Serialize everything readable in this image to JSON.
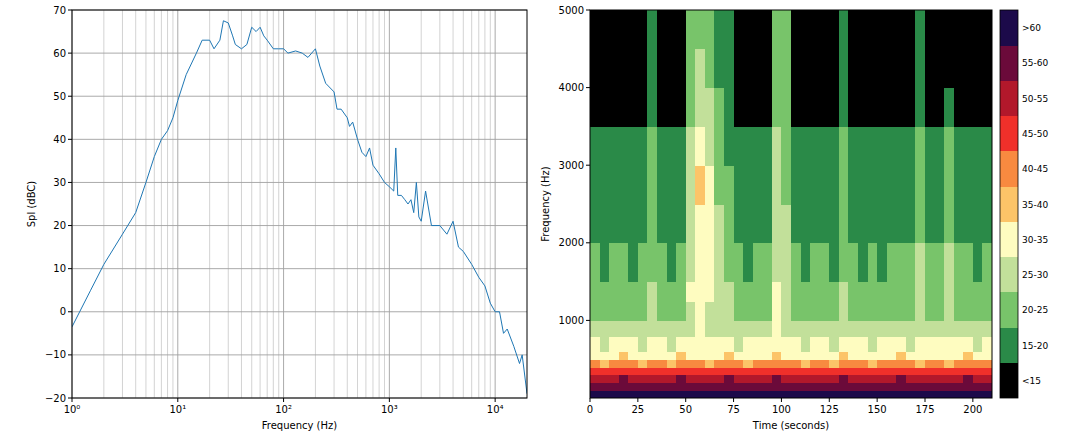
{
  "chart_data": [
    {
      "type": "line",
      "x_label": "Frequency (Hz)",
      "y_label": "Spl (dBC)",
      "log": "x",
      "grid": true,
      "xlim": [
        1,
        20000
      ],
      "ylim": [
        -20,
        70
      ],
      "xticks": [
        {
          "value": 1,
          "label": "10⁰"
        },
        {
          "value": 10,
          "label": "10¹"
        },
        {
          "value": 100,
          "label": "10²"
        },
        {
          "value": 1000,
          "label": "10³"
        },
        {
          "value": 10000,
          "label": "10⁴"
        }
      ],
      "yticks": [
        {
          "value": -20,
          "label": "−20"
        },
        {
          "value": -10,
          "label": "−10"
        },
        0,
        10,
        20,
        30,
        40,
        50,
        60,
        70
      ],
      "x": [
        1,
        1.5,
        2,
        3,
        4,
        5,
        6,
        7,
        8,
        9,
        10,
        12,
        15,
        17,
        20,
        22,
        25,
        27,
        30,
        33,
        35,
        40,
        45,
        50,
        55,
        60,
        65,
        70,
        80,
        90,
        100,
        110,
        130,
        150,
        170,
        200,
        220,
        250,
        300,
        320,
        350,
        400,
        420,
        450,
        500,
        550,
        600,
        650,
        700,
        800,
        900,
        1000,
        1100,
        1150,
        1200,
        1300,
        1400,
        1500,
        1600,
        1700,
        1800,
        1900,
        2000,
        2200,
        2500,
        3000,
        3500,
        4000,
        4500,
        5000,
        6000,
        7000,
        8000,
        9000,
        10000,
        11000,
        12000,
        13000,
        15000,
        17000,
        18000,
        20000
      ],
      "series": [
        {
          "color": "#1f77b4",
          "values": [
            -3.5,
            5,
            11,
            18,
            23,
            30,
            36,
            40,
            42,
            45,
            49,
            55,
            60,
            63,
            63,
            61,
            63,
            67.5,
            67,
            64,
            62,
            61,
            62,
            66,
            65,
            66,
            64,
            63,
            61,
            61,
            61,
            60,
            60.5,
            60,
            59,
            61,
            57,
            53,
            51,
            47,
            47,
            45,
            43,
            44,
            40,
            37,
            36,
            38,
            34,
            32,
            30,
            29,
            28,
            38,
            27,
            27,
            26,
            25,
            26,
            23,
            30,
            22,
            21,
            28,
            20,
            20,
            18,
            21,
            15,
            14,
            11,
            8,
            6,
            2,
            0,
            0,
            -5,
            -4,
            -8,
            -12,
            -10,
            -19
          ]
        }
      ]
    },
    {
      "type": "heatmap",
      "x_label": "Time (seconds)",
      "y_label": "Frequency (Hz)",
      "xlim": [
        0,
        210
      ],
      "ylim": [
        0,
        5000
      ],
      "xticks": [
        0,
        25,
        50,
        75,
        100,
        125,
        150,
        175,
        200
      ],
      "yticks": [
        1000,
        2000,
        3000,
        4000,
        5000
      ],
      "x_bins": [
        0,
        5,
        10,
        15,
        20,
        25,
        30,
        35,
        40,
        45,
        50,
        55,
        60,
        65,
        70,
        75,
        80,
        85,
        90,
        95,
        100,
        105,
        110,
        115,
        120,
        125,
        130,
        135,
        140,
        145,
        150,
        155,
        160,
        165,
        170,
        175,
        180,
        185,
        190,
        195,
        200,
        205,
        210
      ],
      "y_bins": [
        0,
        100,
        200,
        300,
        400,
        500,
        600,
        800,
        1000,
        1250,
        1500,
        2000,
        2500,
        3000,
        3500,
        4000,
        4500,
        5000
      ],
      "values": [
        [
          62,
          61,
          62,
          63,
          62,
          62,
          61,
          62,
          62,
          63,
          62,
          61,
          62,
          62,
          63,
          62,
          61,
          62,
          62,
          62,
          63,
          62,
          61,
          62,
          62,
          62,
          63,
          62,
          61,
          62,
          62,
          62,
          63,
          62,
          62,
          61,
          62,
          62,
          63,
          62,
          61,
          62
        ],
        [
          58,
          57,
          58,
          59,
          58,
          58,
          57,
          58,
          58,
          59,
          58,
          57,
          58,
          58,
          59,
          58,
          57,
          58,
          58,
          59,
          58,
          58,
          57,
          58,
          58,
          58,
          59,
          58,
          57,
          58,
          58,
          58,
          59,
          58,
          58,
          57,
          58,
          58,
          59,
          58,
          57,
          58
        ],
        [
          54,
          53,
          54,
          55,
          54,
          53,
          54,
          54,
          53,
          55,
          54,
          54,
          53,
          54,
          55,
          54,
          53,
          54,
          54,
          55,
          54,
          54,
          53,
          54,
          54,
          53,
          55,
          54,
          54,
          53,
          54,
          54,
          55,
          54,
          53,
          54,
          54,
          53,
          54,
          55,
          54,
          54
        ],
        [
          48,
          47,
          48,
          49,
          48,
          48,
          47,
          48,
          49,
          48,
          48,
          47,
          48,
          48,
          49,
          48,
          47,
          48,
          48,
          49,
          48,
          48,
          47,
          48,
          48,
          48,
          49,
          48,
          47,
          48,
          48,
          47,
          48,
          49,
          48,
          48,
          47,
          48,
          48,
          49,
          48,
          47
        ],
        [
          40,
          39,
          40,
          41,
          40,
          39,
          40,
          40,
          39,
          41,
          40,
          40,
          39,
          40,
          41,
          40,
          39,
          40,
          40,
          41,
          40,
          40,
          39,
          40,
          40,
          39,
          41,
          40,
          40,
          39,
          40,
          40,
          41,
          40,
          39,
          40,
          40,
          39,
          40,
          41,
          40,
          40
        ],
        [
          34,
          33,
          34,
          35,
          34,
          33,
          34,
          34,
          33,
          35,
          34,
          34,
          33,
          34,
          35,
          34,
          33,
          34,
          34,
          35,
          34,
          34,
          33,
          34,
          34,
          33,
          35,
          34,
          34,
          33,
          34,
          34,
          35,
          34,
          33,
          34,
          34,
          33,
          34,
          35,
          34,
          34
        ],
        [
          30,
          29,
          30,
          31,
          30,
          29,
          30,
          30,
          29,
          31,
          31,
          31,
          30,
          30,
          30,
          29,
          30,
          30,
          30,
          32,
          31,
          30,
          29,
          30,
          30,
          29,
          31,
          30,
          30,
          29,
          30,
          30,
          30,
          29,
          30,
          30,
          30,
          31,
          30,
          30,
          29,
          30
        ],
        [
          27,
          26,
          27,
          27,
          26,
          27,
          28,
          27,
          26,
          27,
          29,
          30,
          29,
          28,
          27,
          26,
          27,
          27,
          26,
          30,
          29,
          27,
          26,
          27,
          27,
          26,
          28,
          27,
          26,
          27,
          26,
          27,
          27,
          26,
          28,
          27,
          26,
          28,
          27,
          27,
          26,
          27
        ],
        [
          24,
          23,
          24,
          24,
          23,
          24,
          27,
          24,
          23,
          24,
          28,
          30,
          29,
          27,
          25,
          24,
          23,
          24,
          24,
          31,
          29,
          24,
          23,
          24,
          24,
          23,
          27,
          24,
          23,
          24,
          23,
          24,
          24,
          23,
          27,
          24,
          23,
          27,
          24,
          24,
          23,
          24
        ],
        [
          22,
          21,
          22,
          22,
          21,
          22,
          26,
          22,
          21,
          22,
          30,
          34,
          32,
          28,
          25,
          22,
          21,
          22,
          22,
          30,
          28,
          22,
          21,
          22,
          22,
          21,
          26,
          22,
          21,
          22,
          21,
          22,
          23,
          22,
          26,
          22,
          21,
          26,
          22,
          22,
          21,
          22
        ],
        [
          20,
          19,
          20,
          20,
          19,
          20,
          24,
          20,
          19,
          20,
          29,
          32,
          30,
          26,
          23,
          20,
          19,
          20,
          20,
          29,
          27,
          20,
          19,
          20,
          20,
          19,
          24,
          20,
          19,
          20,
          19,
          21,
          22,
          21,
          25,
          21,
          20,
          25,
          20,
          20,
          19,
          20
        ],
        [
          18,
          17,
          18,
          18,
          17,
          18,
          22,
          18,
          17,
          18,
          28,
          33,
          30,
          25,
          21,
          18,
          17,
          18,
          18,
          27,
          25,
          18,
          17,
          18,
          18,
          17,
          22,
          18,
          17,
          18,
          17,
          18,
          18,
          17,
          23,
          18,
          17,
          23,
          18,
          18,
          17,
          18
        ],
        [
          17,
          16,
          17,
          17,
          16,
          17,
          21,
          17,
          16,
          17,
          29,
          36,
          33,
          24,
          20,
          17,
          16,
          17,
          17,
          26,
          24,
          17,
          16,
          17,
          17,
          16,
          21,
          17,
          16,
          17,
          16,
          17,
          17,
          16,
          22,
          17,
          16,
          22,
          17,
          17,
          16,
          17
        ],
        [
          16,
          15,
          16,
          16,
          15,
          16,
          20,
          16,
          15,
          16,
          26,
          30,
          27,
          22,
          19,
          16,
          15,
          16,
          16,
          25,
          23,
          16,
          15,
          16,
          16,
          15,
          20,
          16,
          15,
          16,
          15,
          16,
          16,
          15,
          21,
          16,
          15,
          20,
          16,
          16,
          15,
          16
        ],
        [
          14,
          13,
          14,
          14,
          13,
          14,
          18,
          14,
          13,
          14,
          24,
          27,
          25,
          20,
          17,
          14,
          13,
          14,
          14,
          24,
          22,
          14,
          13,
          14,
          14,
          13,
          18,
          14,
          13,
          14,
          13,
          14,
          14,
          13,
          19,
          14,
          13,
          15,
          14,
          14,
          13,
          14
        ],
        [
          13,
          12,
          13,
          13,
          12,
          13,
          17,
          13,
          12,
          13,
          23,
          25,
          23,
          19,
          16,
          13,
          12,
          13,
          13,
          23,
          21,
          13,
          12,
          13,
          13,
          12,
          17,
          13,
          12,
          13,
          12,
          13,
          13,
          12,
          18,
          13,
          12,
          14,
          13,
          13,
          12,
          13
        ],
        [
          12,
          11,
          12,
          12,
          11,
          12,
          16,
          12,
          11,
          12,
          22,
          24,
          22,
          18,
          15,
          12,
          11,
          12,
          12,
          22,
          20,
          12,
          11,
          12,
          12,
          11,
          16,
          12,
          11,
          12,
          11,
          12,
          12,
          11,
          17,
          12,
          11,
          13,
          12,
          12,
          11,
          12
        ]
      ],
      "colorbar": {
        "levels": [
          15,
          20,
          25,
          30,
          35,
          40,
          45,
          50,
          55,
          60
        ],
        "colors": [
          "#000000",
          "#2a8a48",
          "#78c46a",
          "#c2e09a",
          "#fefcc0",
          "#fcc468",
          "#f88a40",
          "#f0302a",
          "#b2182b",
          "#6b0a3a",
          "#1c0a4a"
        ],
        "labels": [
          "<15",
          "15-20",
          "20-25",
          "25-30",
          "30-35",
          "35-40",
          "40-45",
          "45-50",
          "50-55",
          "55-60",
          ">60"
        ]
      }
    }
  ]
}
